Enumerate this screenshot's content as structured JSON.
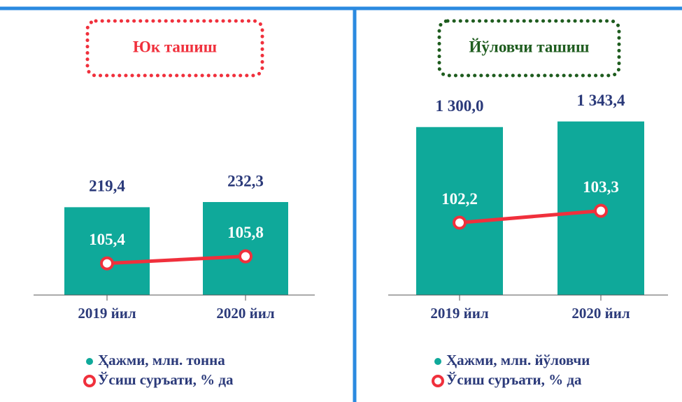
{
  "chart_data": [
    {
      "type": "bar",
      "title": "Юк ташиш",
      "title_color": "#f0303c",
      "categories": [
        "2019 йил",
        "2020 йил"
      ],
      "series": [
        {
          "name": "Ҳажми, млн. тонна",
          "color": "#0fa99a",
          "values": [
            219.4,
            232.3
          ],
          "value_labels": [
            "219,4",
            "232,3"
          ]
        },
        {
          "name": "Ўсиш суръати, % да",
          "color": "#f0303c",
          "axis": "y2",
          "values": [
            105.4,
            105.8
          ],
          "value_labels": [
            "105,4",
            "105,8"
          ]
        }
      ],
      "ylim": [
        0,
        510
      ],
      "y2lim": [
        103.6,
        115.2
      ]
    },
    {
      "type": "bar",
      "title": "Йўловчи ташиш",
      "title_color": "#1e5c1e",
      "categories": [
        "2019 йил",
        "2020 йил"
      ],
      "series": [
        {
          "name": "Ҳажми, млн. йўловчи",
          "color": "#0fa99a",
          "values": [
            1300.0,
            1343.4
          ],
          "value_labels": [
            "1 300,0",
            "1 343,4"
          ]
        },
        {
          "name": "Ўсиш суръати, % да",
          "color": "#f0303c",
          "axis": "y2",
          "values": [
            102.2,
            103.3
          ],
          "value_labels": [
            "102,2",
            "103,3"
          ]
        }
      ],
      "ylim": [
        0,
        1580
      ],
      "y2lim": [
        95.5,
        114.4
      ]
    }
  ]
}
